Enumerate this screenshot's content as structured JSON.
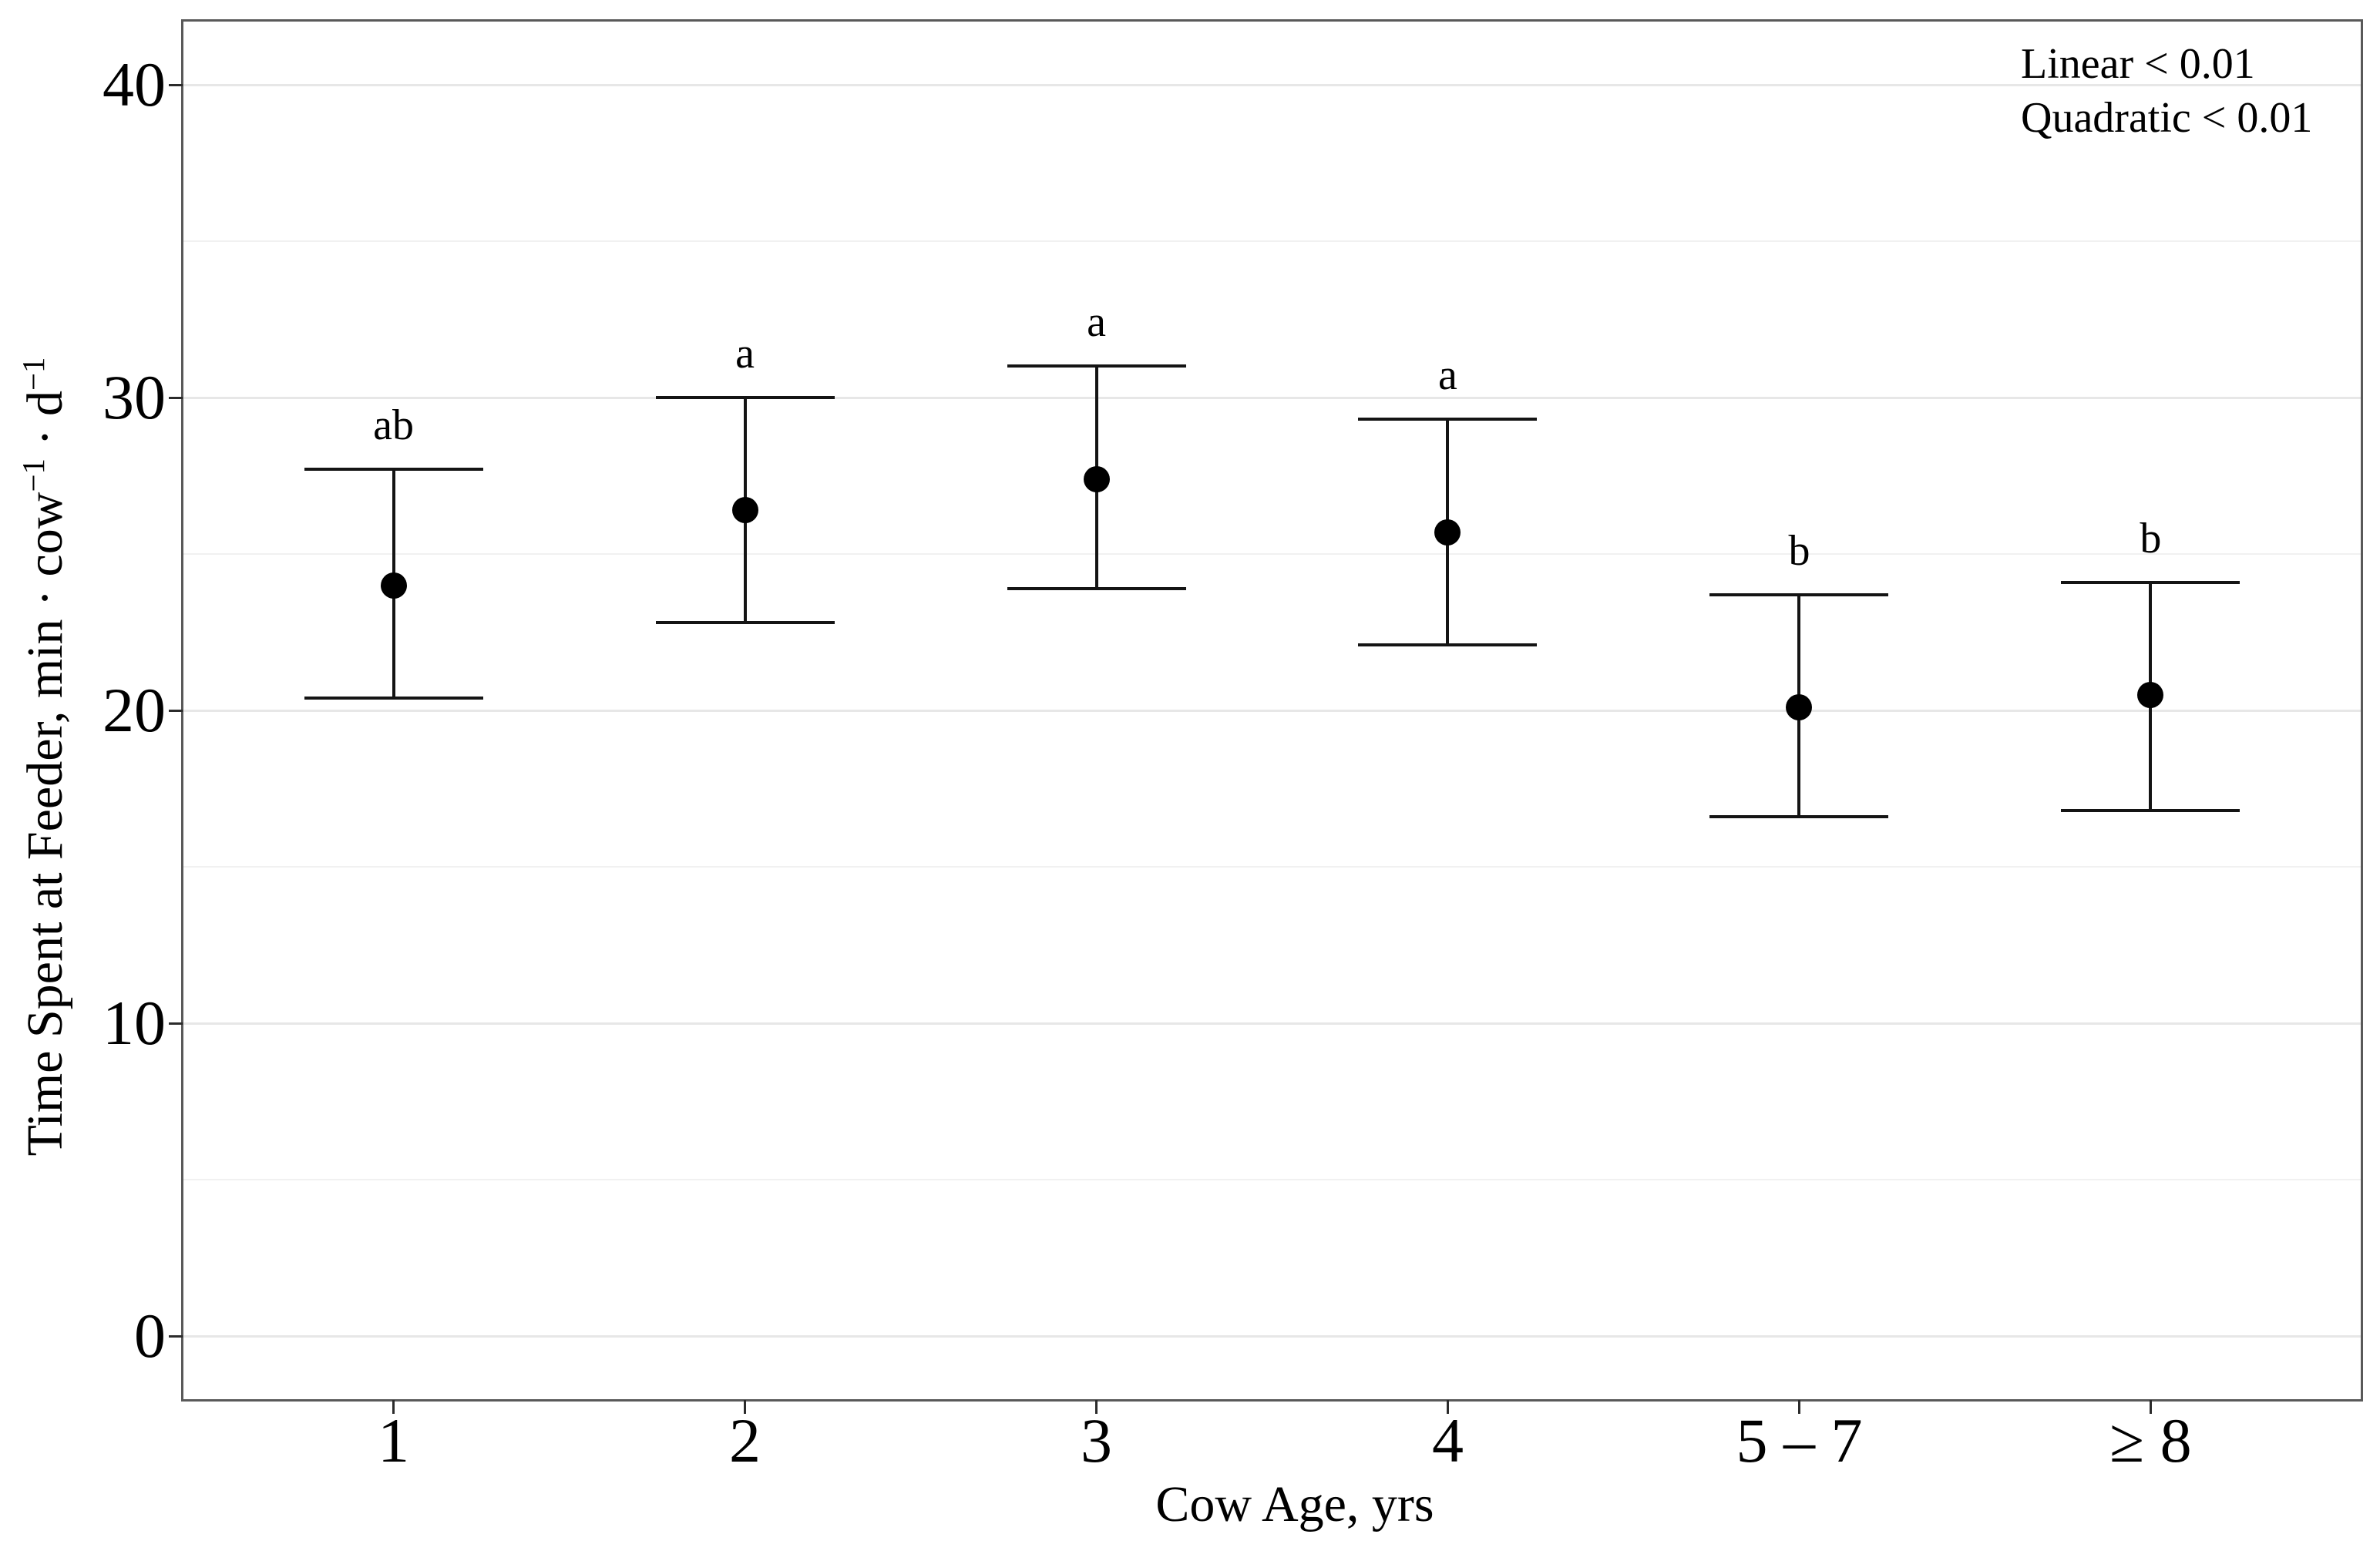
{
  "annotation": {
    "lines": [
      "Linear < 0.01",
      "Quadratic < 0.01"
    ]
  },
  "chart_data": {
    "type": "scatter",
    "subtype": "point-with-error-bars",
    "title": "",
    "xlabel": "Cow Age, yrs",
    "ylabel": {
      "prefix": "Time Spent at Feeder, min · cow",
      "sup1": "−1",
      "mid": " · d",
      "sup2": "−1"
    },
    "ylabel_plain": "Time Spent at Feeder, min · cow−1 · d−1",
    "categories": [
      "1",
      "2",
      "3",
      "4",
      "5 – 7",
      "≥ 8"
    ],
    "series": [
      {
        "name": "Time spent at feeder",
        "means": [
          24.0,
          26.4,
          27.4,
          25.7,
          20.1,
          20.5
        ],
        "ci_low": [
          20.4,
          22.8,
          23.9,
          22.1,
          16.6,
          16.8
        ],
        "ci_high": [
          27.7,
          30.0,
          31.0,
          29.3,
          23.7,
          24.1
        ],
        "sig_letters": [
          "ab",
          "a",
          "a",
          "a",
          "b",
          "b"
        ]
      }
    ],
    "annotations": [
      "Linear < 0.01",
      "Quadratic < 0.01"
    ],
    "ylim": [
      0,
      40
    ],
    "ylim_expanded": [
      -2.045,
      42.045
    ],
    "yticks": [
      0,
      10,
      20,
      30,
      40
    ],
    "yticks_minor": [
      5,
      15,
      25,
      35
    ],
    "grid": "horizontal-major-and-minor",
    "legend": "none",
    "colors": {
      "point": "#000000",
      "error_bar": "#141414",
      "grid_major": "#e7e7e7",
      "grid_minor": "#f1f1f1",
      "panel_border": "#595959",
      "background": "#ffffff",
      "text": "#000000"
    }
  }
}
